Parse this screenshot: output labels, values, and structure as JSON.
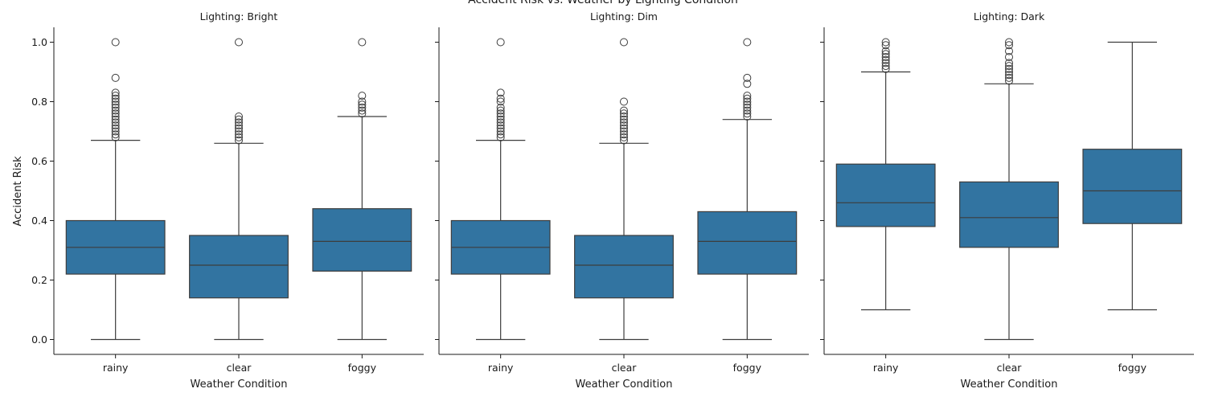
{
  "chart_data": {
    "type": "box",
    "title": "Accident Risk vs. Weather by Lighting Condition",
    "ylabel": "Accident Risk",
    "xlabel": "Weather Condition",
    "ylim": [
      -0.05,
      1.05
    ],
    "yticks": [
      0.0,
      0.2,
      0.4,
      0.6,
      0.8,
      1.0
    ],
    "yticklabels": [
      "0.0",
      "0.2",
      "0.4",
      "0.6",
      "0.8",
      "1.0"
    ],
    "categories": [
      "rainy",
      "clear",
      "foggy"
    ],
    "colors": {
      "box": "#3274a1",
      "line": "#3d3d3d",
      "axis": "#1a1a1a"
    },
    "grid": false,
    "panels": [
      {
        "title": "Lighting: Bright",
        "boxes": [
          {
            "category": "rainy",
            "whisker_low": 0.0,
            "q1": 0.22,
            "median": 0.31,
            "q3": 0.4,
            "whisker_high": 0.67,
            "outliers": [
              0.68,
              0.69,
              0.7,
              0.71,
              0.72,
              0.73,
              0.74,
              0.75,
              0.76,
              0.77,
              0.78,
              0.79,
              0.8,
              0.81,
              0.82,
              0.83,
              0.88,
              1.0
            ]
          },
          {
            "category": "clear",
            "whisker_low": 0.0,
            "q1": 0.14,
            "median": 0.25,
            "q3": 0.35,
            "whisker_high": 0.66,
            "outliers": [
              0.67,
              0.68,
              0.69,
              0.7,
              0.71,
              0.72,
              0.73,
              0.74,
              0.75,
              1.0
            ]
          },
          {
            "category": "foggy",
            "whisker_low": 0.0,
            "q1": 0.23,
            "median": 0.33,
            "q3": 0.44,
            "whisker_high": 0.75,
            "outliers": [
              0.76,
              0.77,
              0.78,
              0.79,
              0.8,
              0.82,
              1.0
            ]
          }
        ]
      },
      {
        "title": "Lighting: Dim",
        "boxes": [
          {
            "category": "rainy",
            "whisker_low": 0.0,
            "q1": 0.22,
            "median": 0.31,
            "q3": 0.4,
            "whisker_high": 0.67,
            "outliers": [
              0.68,
              0.69,
              0.7,
              0.71,
              0.72,
              0.73,
              0.74,
              0.75,
              0.76,
              0.77,
              0.78,
              0.8,
              0.81,
              0.83,
              1.0
            ]
          },
          {
            "category": "clear",
            "whisker_low": 0.0,
            "q1": 0.14,
            "median": 0.25,
            "q3": 0.35,
            "whisker_high": 0.66,
            "outliers": [
              0.67,
              0.68,
              0.69,
              0.7,
              0.71,
              0.72,
              0.73,
              0.74,
              0.75,
              0.76,
              0.77,
              0.8,
              1.0
            ]
          },
          {
            "category": "foggy",
            "whisker_low": 0.0,
            "q1": 0.22,
            "median": 0.33,
            "q3": 0.43,
            "whisker_high": 0.74,
            "outliers": [
              0.75,
              0.76,
              0.77,
              0.78,
              0.79,
              0.8,
              0.81,
              0.82,
              0.86,
              0.88,
              1.0
            ]
          }
        ]
      },
      {
        "title": "Lighting: Dark",
        "boxes": [
          {
            "category": "rainy",
            "whisker_low": 0.1,
            "q1": 0.38,
            "median": 0.46,
            "q3": 0.59,
            "whisker_high": 0.9,
            "outliers": [
              0.91,
              0.92,
              0.93,
              0.94,
              0.95,
              0.96,
              0.97,
              0.99,
              1.0
            ]
          },
          {
            "category": "clear",
            "whisker_low": 0.0,
            "q1": 0.31,
            "median": 0.41,
            "q3": 0.53,
            "whisker_high": 0.86,
            "outliers": [
              0.87,
              0.88,
              0.89,
              0.9,
              0.91,
              0.92,
              0.93,
              0.95,
              0.97,
              0.99,
              1.0
            ]
          },
          {
            "category": "foggy",
            "whisker_low": 0.1,
            "q1": 0.39,
            "median": 0.5,
            "q3": 0.64,
            "whisker_high": 1.0,
            "outliers": []
          }
        ]
      }
    ]
  }
}
